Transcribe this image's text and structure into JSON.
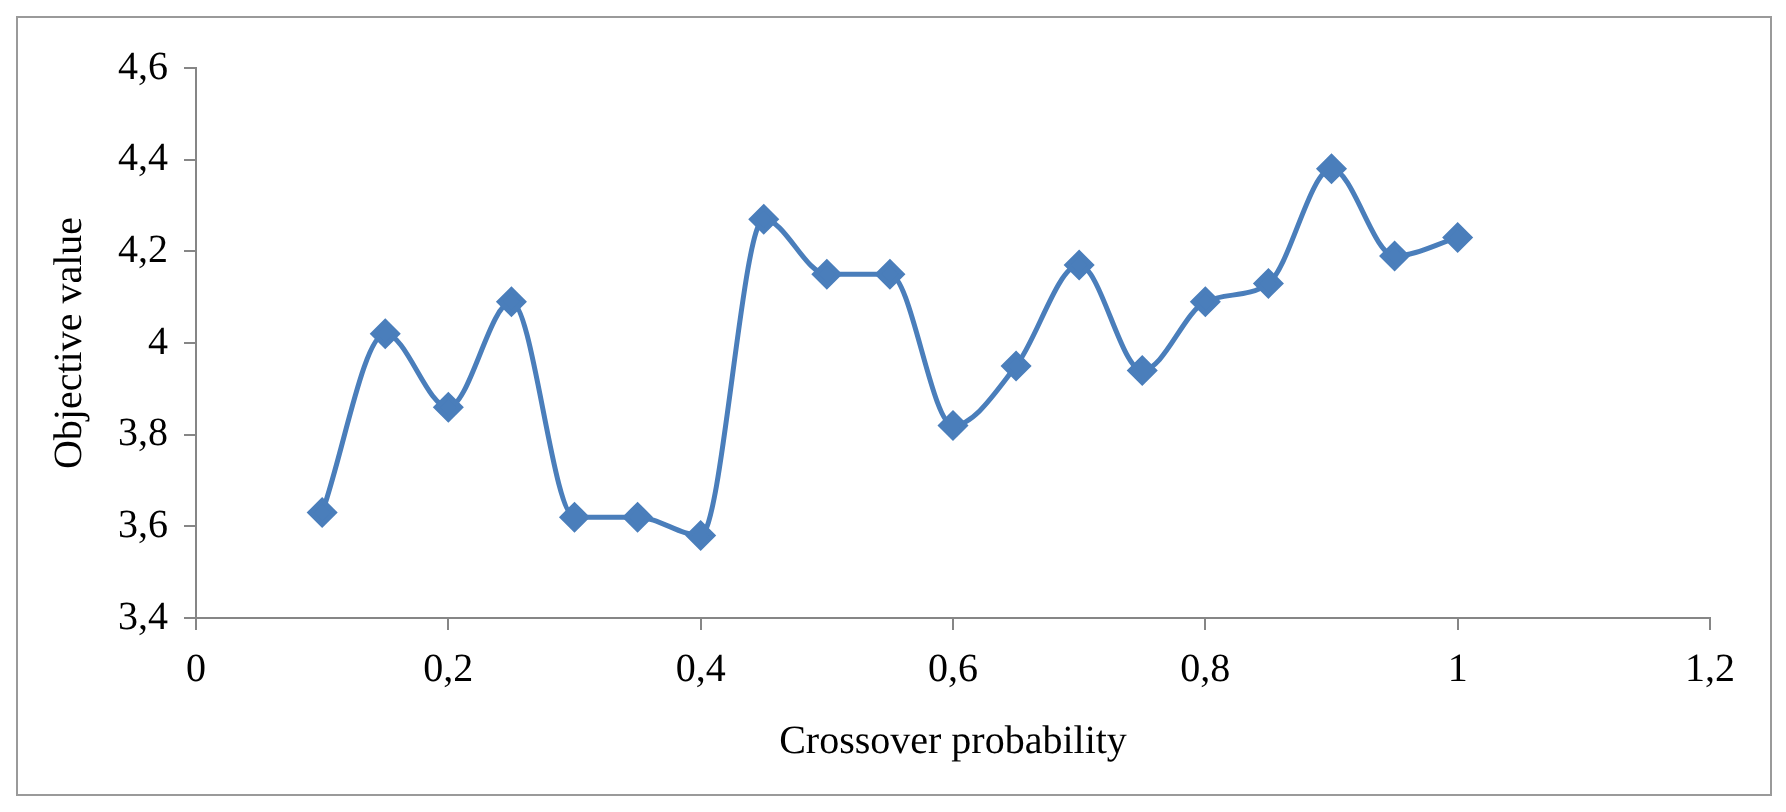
{
  "chart_data": {
    "type": "line",
    "xlabel": "Crossover probability",
    "ylabel": "Objective value",
    "x": [
      0.1,
      0.15,
      0.2,
      0.25,
      0.3,
      0.35,
      0.4,
      0.45,
      0.5,
      0.55,
      0.6,
      0.65,
      0.7,
      0.75,
      0.8,
      0.85,
      0.9,
      0.95,
      1
    ],
    "series": [
      {
        "color": "#4a7ebb",
        "values": [
          3.63,
          4.02,
          3.86,
          4.09,
          3.62,
          3.62,
          3.58,
          4.27,
          4.15,
          4.15,
          3.82,
          3.95,
          4.17,
          3.94,
          4.09,
          4.13,
          4.38,
          4.19,
          4.23
        ]
      }
    ],
    "xlim": [
      0,
      1.2
    ],
    "xticks": [
      0,
      {
        "value": 0.2,
        "label": "0,2"
      },
      {
        "value": 0.4,
        "label": "0,4"
      },
      {
        "value": 0.6,
        "label": "0,6"
      },
      {
        "value": 0.8,
        "label": "0,8"
      },
      1,
      {
        "value": 1.2,
        "label": "1,2"
      }
    ],
    "ylim": [
      3.4,
      4.6
    ],
    "yticks": [
      {
        "value": 3.4,
        "label": "3,4"
      },
      {
        "value": 3.6,
        "label": "3,6"
      },
      {
        "value": 3.8,
        "label": "3,8"
      },
      4,
      {
        "value": 4.2,
        "label": "4,2"
      },
      {
        "value": 4.4,
        "label": "4,4"
      },
      {
        "value": 4.6,
        "label": "4,6"
      }
    ],
    "grid": false,
    "legend": false,
    "marker": "diamond",
    "line_style": "solid"
  }
}
